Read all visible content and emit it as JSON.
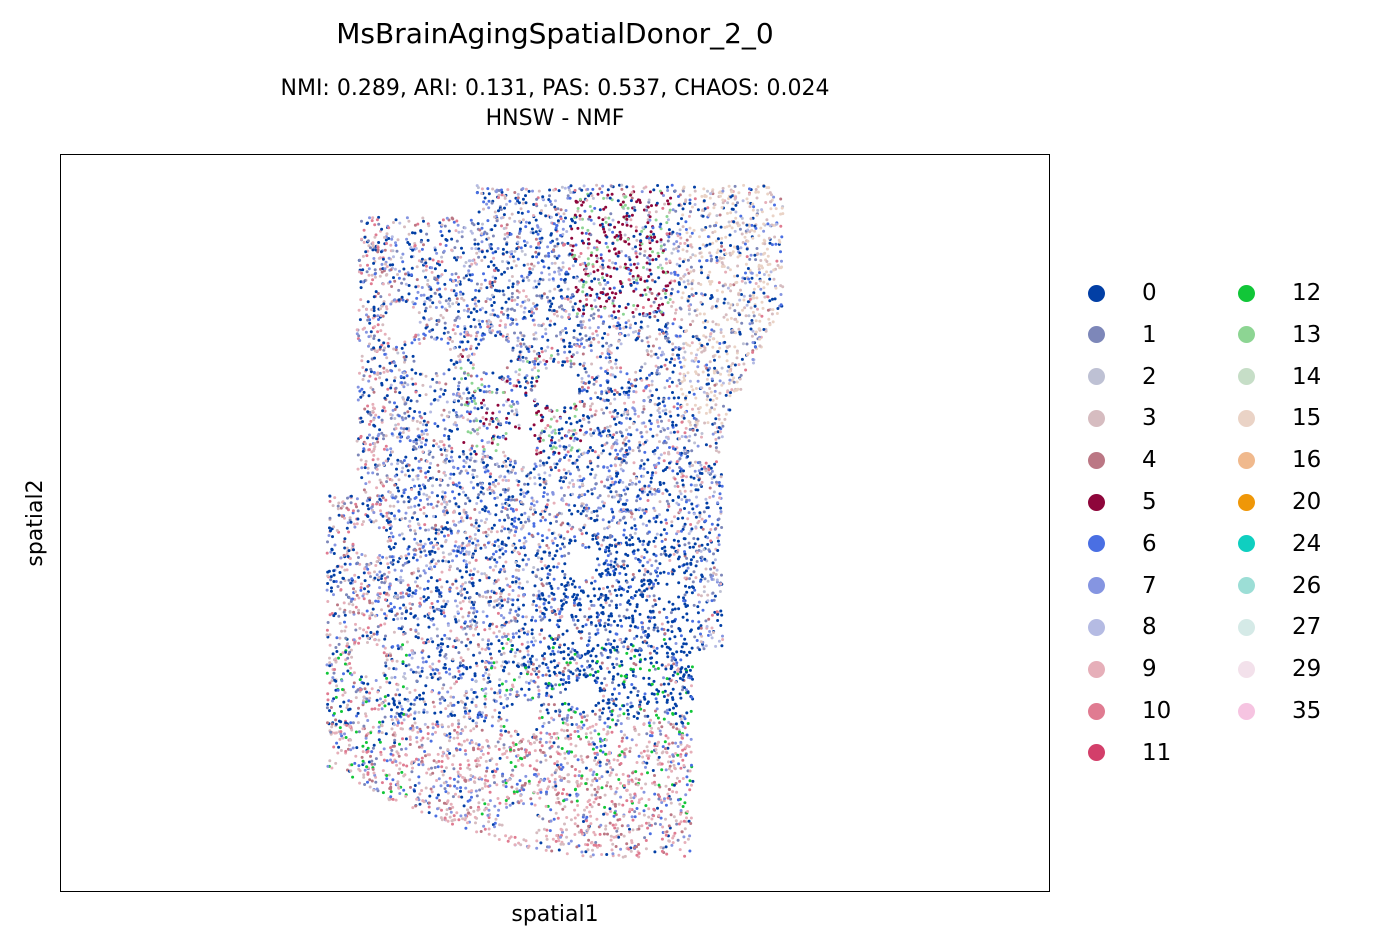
{
  "chart_data": {
    "type": "scatter",
    "title": "MsBrainAgingSpatialDonor_2_0",
    "subtitle_line1": "NMI: 0.289,  ARI: 0.131,  PAS: 0.537,  CHAOS: 0.024",
    "subtitle_line2": "HNSW - NMF",
    "xlabel": "spatial1",
    "ylabel": "spatial2",
    "ticks_visible": false,
    "legend_placement": "right, outside plot, two columns",
    "legend": [
      {
        "label": "0",
        "color": "#023fa5"
      },
      {
        "label": "1",
        "color": "#7d87b9"
      },
      {
        "label": "2",
        "color": "#bec1d4"
      },
      {
        "label": "3",
        "color": "#d6bcc0"
      },
      {
        "label": "4",
        "color": "#bb7784"
      },
      {
        "label": "5",
        "color": "#8e063b"
      },
      {
        "label": "6",
        "color": "#4a6fe3"
      },
      {
        "label": "7",
        "color": "#8595e1"
      },
      {
        "label": "8",
        "color": "#b5bbe3"
      },
      {
        "label": "9",
        "color": "#e6afb9"
      },
      {
        "label": "10",
        "color": "#e07b91"
      },
      {
        "label": "11",
        "color": "#d33f6a"
      },
      {
        "label": "12",
        "color": "#11c638"
      },
      {
        "label": "13",
        "color": "#8dd593"
      },
      {
        "label": "14",
        "color": "#c6dec7"
      },
      {
        "label": "15",
        "color": "#ead3c6"
      },
      {
        "label": "16",
        "color": "#f0b98d"
      },
      {
        "label": "20",
        "color": "#ef9708"
      },
      {
        "label": "24",
        "color": "#0fcfc0"
      },
      {
        "label": "26",
        "color": "#9cded6"
      },
      {
        "label": "27",
        "color": "#d5eae7"
      },
      {
        "label": "29",
        "color": "#f3e1eb"
      },
      {
        "label": "35",
        "color": "#f6c4e1"
      }
    ]
  }
}
